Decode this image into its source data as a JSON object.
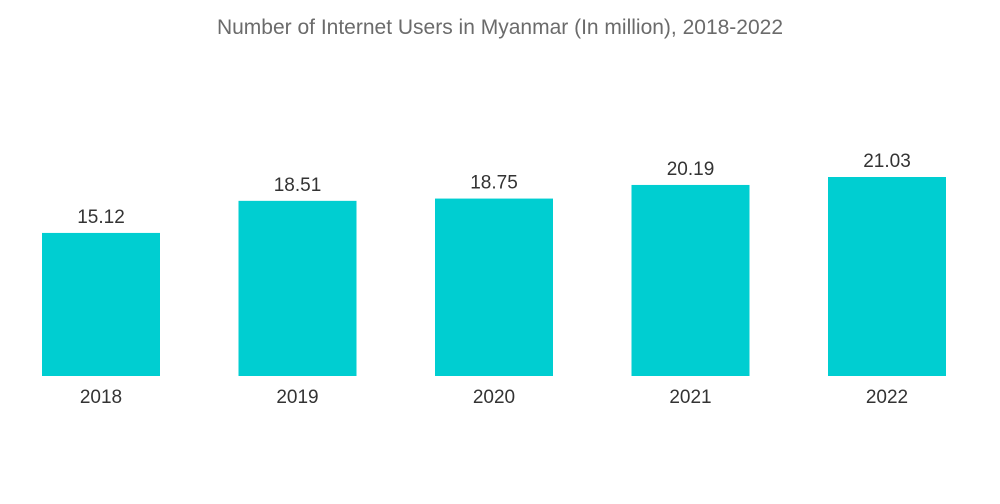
{
  "chart_data": {
    "type": "bar",
    "title": "Number of Internet Users in Myanmar (In million), 2018-2022",
    "xlabel": "",
    "ylabel": "",
    "categories": [
      "2018",
      "2019",
      "2020",
      "2021",
      "2022"
    ],
    "values": [
      15.12,
      18.51,
      18.75,
      20.19,
      21.03
    ],
    "value_labels": [
      "15.12",
      "18.51",
      "18.75",
      "20.19",
      "21.03"
    ],
    "ylim": [
      0,
      21.03
    ],
    "grid": false,
    "legend": "none",
    "bar_color": "#00CED1"
  }
}
